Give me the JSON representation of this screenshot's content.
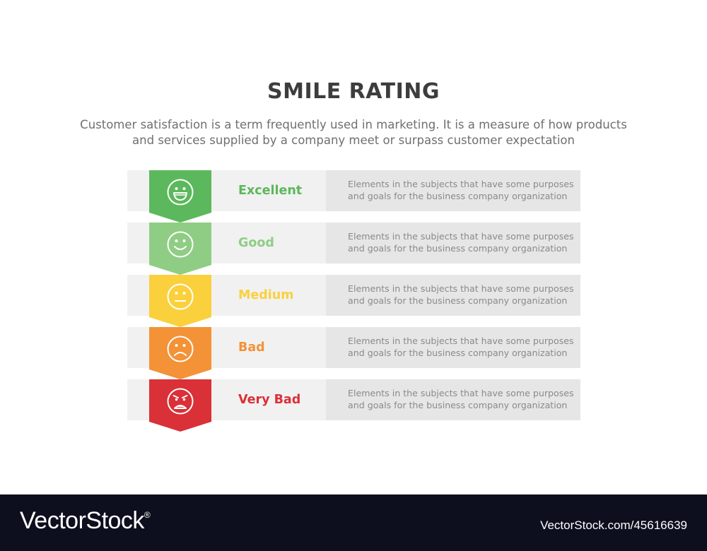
{
  "header": {
    "title": "SMILE RATING",
    "subtitle_line1": "Customer satisfaction is a term frequently used in marketing. It is a measure of how products",
    "subtitle_line2": "and services supplied by a company meet or surpass customer expectation"
  },
  "ratings": [
    {
      "label": "Excellent",
      "color": "#5cb85c",
      "icon": "big-smile-face-icon",
      "desc_line1": "Elements in the subjects that have some purposes",
      "desc_line2": "and goals for the  business company organization"
    },
    {
      "label": "Good",
      "color": "#8fcd84",
      "icon": "smile-face-icon",
      "desc_line1": "Elements in the subjects that have some purposes",
      "desc_line2": "and goals for the  business company organization"
    },
    {
      "label": "Medium",
      "color": "#fbd03d",
      "icon": "neutral-face-icon",
      "desc_line1": "Elements in the subjects that have some purposes",
      "desc_line2": "and goals for the  business company organization"
    },
    {
      "label": "Bad",
      "color": "#f39237",
      "icon": "sad-face-icon",
      "desc_line1": "Elements in the subjects that have some purposes",
      "desc_line2": "and goals for the  business company organization"
    },
    {
      "label": "Very Bad",
      "color": "#da3037",
      "icon": "angry-face-icon",
      "desc_line1": "Elements in the subjects that have some purposes",
      "desc_line2": "and goals for the  business company organization"
    }
  ],
  "footer": {
    "brand": "VectorStock",
    "brand_mark": "®",
    "ref": "VectorStock.com/45616639"
  }
}
